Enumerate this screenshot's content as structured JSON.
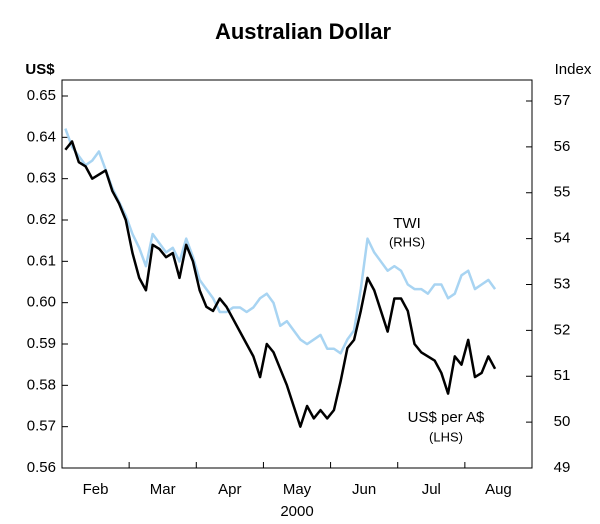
{
  "chart_data": {
    "type": "line",
    "title": "Australian Dollar",
    "y_label": "US$",
    "y2_label": "Index",
    "x_label": "2000",
    "categories": [
      "Feb",
      null,
      null,
      null,
      null,
      null,
      null,
      null,
      null,
      null,
      "Mar",
      null,
      null,
      null,
      null,
      null,
      null,
      null,
      null,
      null,
      "Apr",
      null,
      null,
      null,
      null,
      null,
      null,
      null,
      null,
      null,
      "May",
      null,
      null,
      null,
      null,
      null,
      null,
      null,
      null,
      null,
      "Jun",
      null,
      null,
      null,
      null,
      null,
      null,
      null,
      null,
      null,
      "Jul",
      null,
      null,
      null,
      null,
      null,
      null,
      null,
      null,
      null,
      "Aug",
      null,
      null,
      null,
      null,
      null,
      null,
      null,
      null,
      null
    ],
    "series": [
      {
        "name": "TWI",
        "color": "#a8d4f2",
        "axis": "y2",
        "values": [
          56.4,
          56.0,
          55.8,
          55.6,
          55.7,
          55.9,
          55.5,
          55.1,
          54.8,
          54.5,
          54.1,
          53.8,
          53.4,
          54.1,
          53.9,
          53.7,
          53.8,
          53.5,
          54.0,
          53.6,
          53.1,
          52.9,
          52.7,
          52.4,
          52.4,
          52.5,
          52.5,
          52.4,
          52.5,
          52.7,
          52.8,
          52.6,
          52.1,
          52.2,
          52.0,
          51.8,
          51.7,
          51.8,
          51.9,
          51.6,
          51.6,
          51.5,
          51.8,
          52.0,
          52.9,
          54.0,
          53.7,
          53.5,
          53.3,
          53.4,
          53.3,
          53.0,
          52.9,
          52.9,
          52.8,
          53.0,
          53.0,
          52.7,
          52.8,
          53.2,
          53.3,
          52.9,
          53.0,
          53.1,
          52.9,
          null,
          null,
          null,
          null,
          null
        ]
      },
      {
        "name": "US$ per A$",
        "color": "#000000",
        "axis": "y",
        "values": [
          0.637,
          0.639,
          0.634,
          0.633,
          0.63,
          0.631,
          0.632,
          0.627,
          0.624,
          0.62,
          0.612,
          0.606,
          0.603,
          0.614,
          0.613,
          0.611,
          0.612,
          0.606,
          0.614,
          0.61,
          0.603,
          0.599,
          0.598,
          0.601,
          0.599,
          0.596,
          0.593,
          0.59,
          0.587,
          0.582,
          0.59,
          0.588,
          0.584,
          0.58,
          0.575,
          0.57,
          0.575,
          0.572,
          0.574,
          0.572,
          0.574,
          0.581,
          0.589,
          0.591,
          0.598,
          0.606,
          0.603,
          0.598,
          0.593,
          0.601,
          0.601,
          0.598,
          0.59,
          0.588,
          0.587,
          0.586,
          0.583,
          0.578,
          0.587,
          0.585,
          0.591,
          0.582,
          0.583,
          0.587,
          0.584,
          null,
          null,
          null,
          null,
          null
        ]
      }
    ],
    "annotations": [
      "(RHS)",
      "(LHS)"
    ],
    "ylim": [
      0.56,
      0.65
    ],
    "yticks": [
      0.56,
      0.57,
      0.58,
      0.59,
      {
        "value": 0.6,
        "label": "0.60"
      },
      0.61,
      0.62,
      0.63,
      0.64,
      0.65
    ],
    "y2lim": [
      49,
      57
    ],
    "y2ticks": [
      49,
      50,
      51,
      52,
      53,
      54,
      55,
      56,
      57
    ]
  }
}
